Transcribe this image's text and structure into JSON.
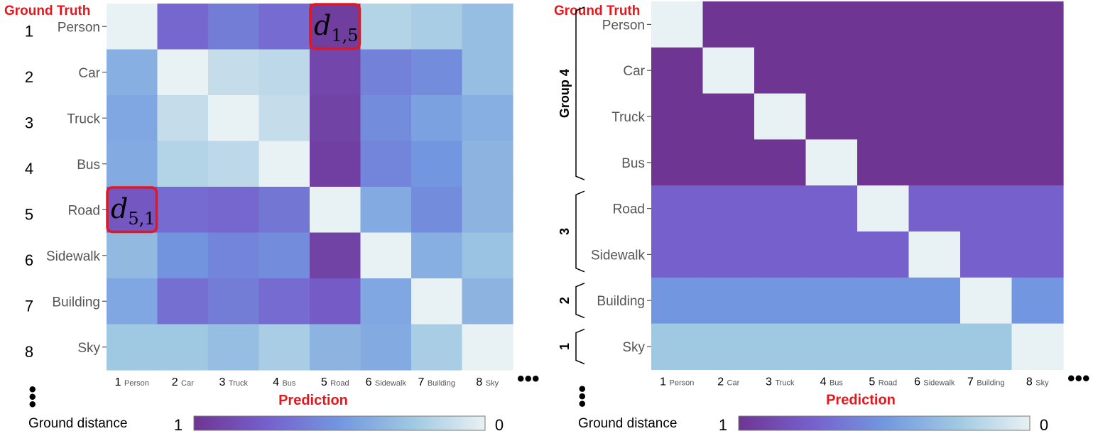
{
  "chart_data": [
    {
      "type": "heatmap",
      "title": "",
      "ylabel": "Ground Truth",
      "xlabel": "Prediction",
      "row_indices": [
        "1",
        "2",
        "3",
        "4",
        "5",
        "6",
        "7",
        "8"
      ],
      "col_indices": [
        "1",
        "2",
        "3",
        "4",
        "5",
        "6",
        "7",
        "8"
      ],
      "categories": [
        "Person",
        "Car",
        "Truck",
        "Bus",
        "Road",
        "Sidewalk",
        "Building",
        "Sky"
      ],
      "values": [
        [
          0.0,
          0.72,
          0.62,
          0.7,
          0.95,
          0.18,
          0.22,
          0.3
        ],
        [
          0.38,
          0.0,
          0.12,
          0.15,
          0.9,
          0.6,
          0.55,
          0.3
        ],
        [
          0.42,
          0.12,
          0.0,
          0.12,
          0.92,
          0.55,
          0.45,
          0.38
        ],
        [
          0.4,
          0.18,
          0.15,
          0.0,
          0.94,
          0.58,
          0.5,
          0.35
        ],
        [
          0.8,
          0.7,
          0.72,
          0.65,
          0.0,
          0.4,
          0.55,
          0.35
        ],
        [
          0.32,
          0.52,
          0.58,
          0.55,
          0.92,
          0.0,
          0.38,
          0.28
        ],
        [
          0.42,
          0.68,
          0.62,
          0.7,
          0.78,
          0.42,
          0.0,
          0.35
        ],
        [
          0.25,
          0.25,
          0.3,
          0.22,
          0.35,
          0.4,
          0.22,
          0.0
        ]
      ],
      "annotations": [
        {
          "row": 0,
          "col": 4,
          "symbol": "d",
          "subscript": "1,5"
        },
        {
          "row": 4,
          "col": 0,
          "symbol": "d",
          "subscript": "5,1"
        }
      ],
      "colorbar": {
        "label": "Ground distance",
        "min_label": "1",
        "max_label": "0"
      },
      "ellipsis_x": "•••",
      "ellipsis_y": "•••"
    },
    {
      "type": "heatmap",
      "title": "",
      "ylabel": "Ground Truth",
      "xlabel": "Prediction",
      "categories": [
        "Person",
        "Car",
        "Truck",
        "Bus",
        "Road",
        "Sidewalk",
        "Building",
        "Sky"
      ],
      "col_indices": [
        "1",
        "2",
        "3",
        "4",
        "5",
        "6",
        "7",
        "8"
      ],
      "values": [
        [
          0,
          1,
          1,
          1,
          1,
          1,
          1,
          1
        ],
        [
          1,
          0,
          1,
          1,
          1,
          1,
          1,
          1
        ],
        [
          1,
          1,
          0,
          1,
          1,
          1,
          1,
          1
        ],
        [
          1,
          1,
          1,
          0,
          1,
          1,
          1,
          1
        ],
        [
          0.75,
          0.75,
          0.75,
          0.75,
          0,
          0.75,
          0.75,
          0.75
        ],
        [
          0.75,
          0.75,
          0.75,
          0.75,
          0.75,
          0,
          0.75,
          0.75
        ],
        [
          0.5,
          0.5,
          0.5,
          0.5,
          0.5,
          0.5,
          0,
          0.5
        ],
        [
          0.25,
          0.25,
          0.25,
          0.25,
          0.25,
          0.25,
          0.25,
          0
        ]
      ],
      "groups": [
        {
          "label": "Group 4",
          "rows": [
            0,
            3
          ]
        },
        {
          "label": "3",
          "rows": [
            4,
            5
          ]
        },
        {
          "label": "2",
          "rows": [
            6,
            6
          ]
        },
        {
          "label": "1",
          "rows": [
            7,
            7
          ]
        }
      ],
      "colorbar": {
        "label": "Ground distance",
        "min_label": "1",
        "max_label": "0"
      },
      "ellipsis_x": "•••",
      "ellipsis_y": "•••"
    }
  ]
}
